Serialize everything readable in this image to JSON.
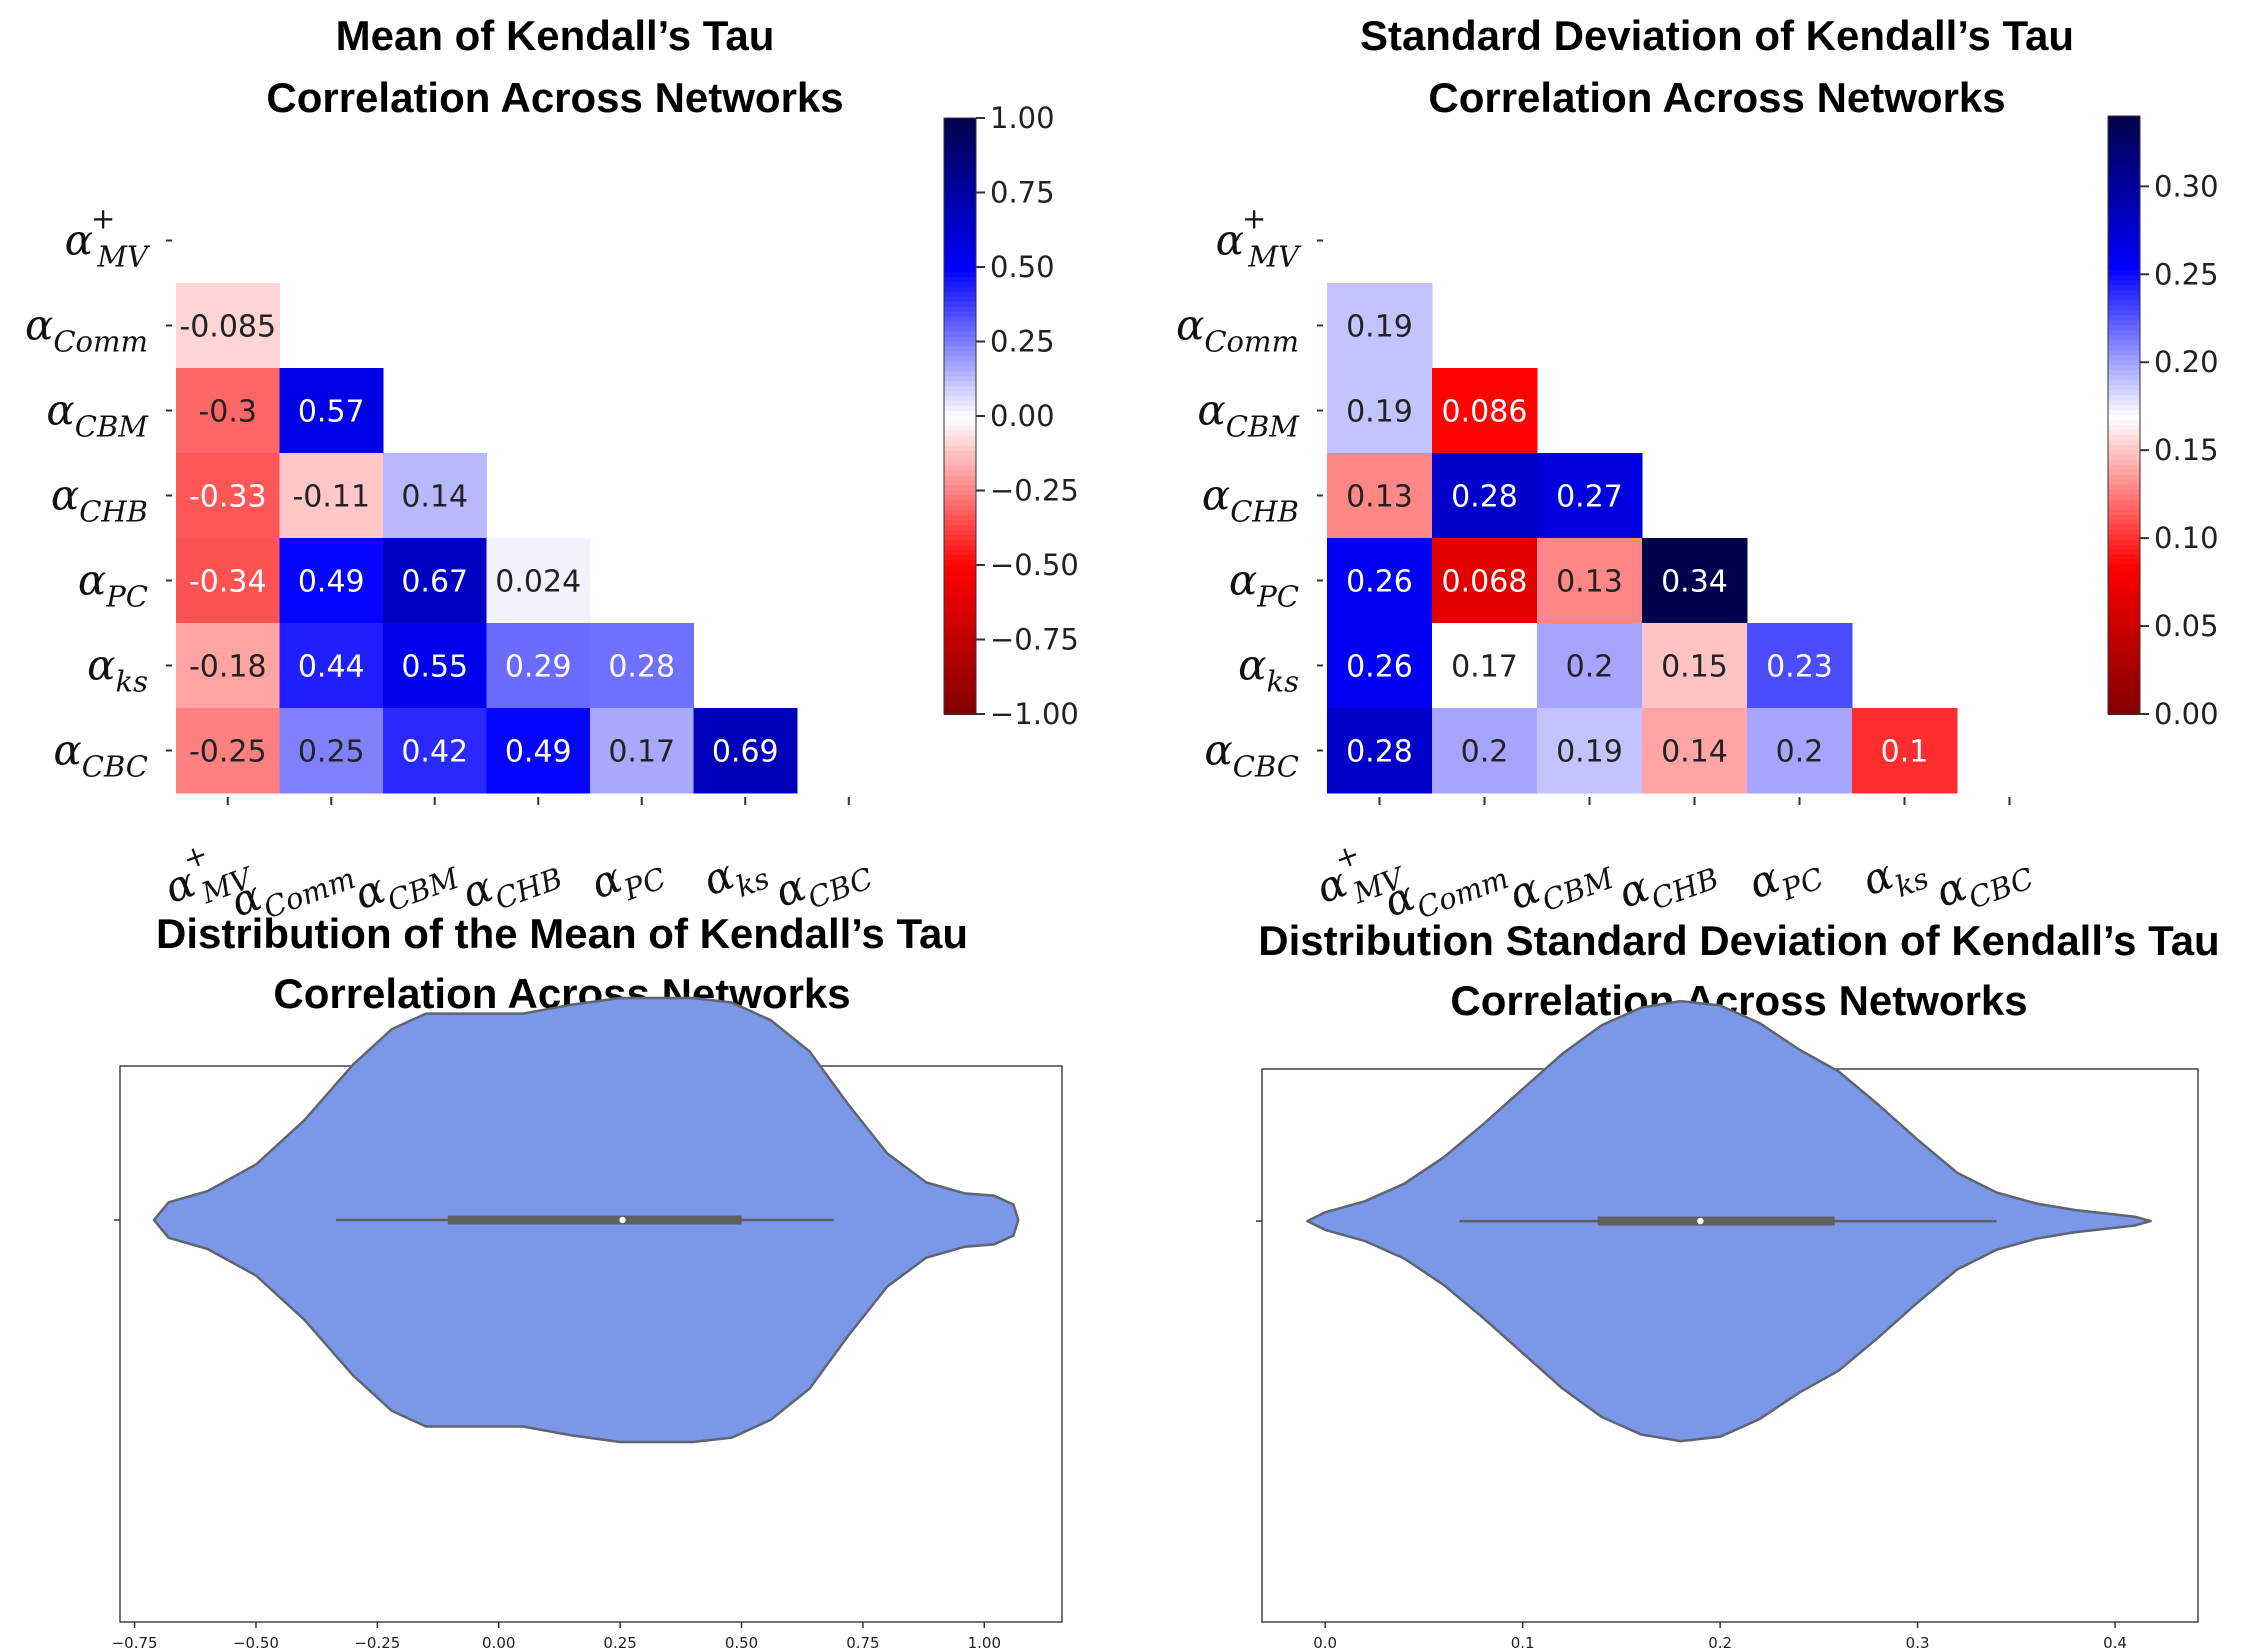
{
  "chart_data": [
    {
      "type": "heatmap",
      "title_lines": [
        "Mean of Kendall’s Tau",
        "Correlation Across Networks"
      ],
      "row_labels": [
        {
          "main": "α",
          "sub": "MV",
          "sup": "+"
        },
        {
          "main": "α",
          "sub": "Comm",
          "sup": ""
        },
        {
          "main": "α",
          "sub": "CBM",
          "sup": ""
        },
        {
          "main": "α",
          "sub": "CHB",
          "sup": ""
        },
        {
          "main": "α",
          "sub": "PC",
          "sup": ""
        },
        {
          "main": "α",
          "sub": "ks",
          "sup": ""
        },
        {
          "main": "α",
          "sub": "CBC",
          "sup": ""
        }
      ],
      "col_labels": [
        {
          "main": "α",
          "sub": "MV",
          "sup": "+"
        },
        {
          "main": "α",
          "sub": "Comm",
          "sup": ""
        },
        {
          "main": "α",
          "sub": "CBM",
          "sup": ""
        },
        {
          "main": "α",
          "sub": "CHB",
          "sup": ""
        },
        {
          "main": "α",
          "sub": "PC",
          "sup": ""
        },
        {
          "main": "α",
          "sub": "ks",
          "sup": ""
        },
        {
          "main": "α",
          "sub": "CBC",
          "sup": ""
        }
      ],
      "values": [
        [
          null,
          null,
          null,
          null,
          null,
          null,
          null
        ],
        [
          -0.085,
          null,
          null,
          null,
          null,
          null,
          null
        ],
        [
          -0.3,
          0.57,
          null,
          null,
          null,
          null,
          null
        ],
        [
          -0.33,
          -0.11,
          0.14,
          null,
          null,
          null,
          null
        ],
        [
          -0.34,
          0.49,
          0.67,
          0.024,
          null,
          null,
          null
        ],
        [
          -0.18,
          0.44,
          0.55,
          0.29,
          0.28,
          null,
          null
        ],
        [
          -0.25,
          0.25,
          0.42,
          0.49,
          0.17,
          0.69,
          null
        ]
      ],
      "labels": [
        [
          null,
          null,
          null,
          null,
          null,
          null,
          null
        ],
        [
          "-0.085",
          null,
          null,
          null,
          null,
          null,
          null
        ],
        [
          "-0.3",
          "0.57",
          null,
          null,
          null,
          null,
          null
        ],
        [
          "-0.33",
          "-0.11",
          "0.14",
          null,
          null,
          null,
          null
        ],
        [
          "-0.34",
          "0.49",
          "0.67",
          "0.024",
          null,
          null,
          null
        ],
        [
          "-0.18",
          "0.44",
          "0.55",
          "0.29",
          "0.28",
          null,
          null
        ],
        [
          "-0.25",
          "0.25",
          "0.42",
          "0.49",
          "0.17",
          "0.69",
          null
        ]
      ],
      "vmin": -1.0,
      "vmax": 1.0,
      "colorbar_ticks": [
        1.0,
        0.75,
        0.5,
        0.25,
        0.0,
        -0.25,
        -0.5,
        -0.75,
        -1.0
      ],
      "colorbar_tick_labels": [
        "1.00",
        "0.75",
        "0.50",
        "0.25",
        "0.00",
        "−0.25",
        "−0.50",
        "−0.75",
        "−1.00"
      ],
      "colormap": "seismic_r"
    },
    {
      "type": "heatmap",
      "title_lines": [
        "Standard Deviation of Kendall’s Tau",
        "Correlation Across Networks"
      ],
      "row_labels": [
        {
          "main": "α",
          "sub": "MV",
          "sup": "+"
        },
        {
          "main": "α",
          "sub": "Comm",
          "sup": ""
        },
        {
          "main": "α",
          "sub": "CBM",
          "sup": ""
        },
        {
          "main": "α",
          "sub": "CHB",
          "sup": ""
        },
        {
          "main": "α",
          "sub": "PC",
          "sup": ""
        },
        {
          "main": "α",
          "sub": "ks",
          "sup": ""
        },
        {
          "main": "α",
          "sub": "CBC",
          "sup": ""
        }
      ],
      "col_labels": [
        {
          "main": "α",
          "sub": "MV",
          "sup": "+"
        },
        {
          "main": "α",
          "sub": "Comm",
          "sup": ""
        },
        {
          "main": "α",
          "sub": "CBM",
          "sup": ""
        },
        {
          "main": "α",
          "sub": "CHB",
          "sup": ""
        },
        {
          "main": "α",
          "sub": "PC",
          "sup": ""
        },
        {
          "main": "α",
          "sub": "ks",
          "sup": ""
        },
        {
          "main": "α",
          "sub": "CBC",
          "sup": ""
        }
      ],
      "values": [
        [
          null,
          null,
          null,
          null,
          null,
          null,
          null
        ],
        [
          0.19,
          null,
          null,
          null,
          null,
          null,
          null
        ],
        [
          0.19,
          0.086,
          null,
          null,
          null,
          null,
          null
        ],
        [
          0.13,
          0.28,
          0.27,
          null,
          null,
          null,
          null
        ],
        [
          0.26,
          0.068,
          0.13,
          0.34,
          null,
          null,
          null
        ],
        [
          0.26,
          0.17,
          0.2,
          0.15,
          0.23,
          null,
          null
        ],
        [
          0.28,
          0.2,
          0.19,
          0.14,
          0.2,
          0.1,
          null
        ]
      ],
      "labels": [
        [
          null,
          null,
          null,
          null,
          null,
          null,
          null
        ],
        [
          "0.19",
          null,
          null,
          null,
          null,
          null,
          null
        ],
        [
          "0.19",
          "0.086",
          null,
          null,
          null,
          null,
          null
        ],
        [
          "0.13",
          "0.28",
          "0.27",
          null,
          null,
          null,
          null
        ],
        [
          "0.26",
          "0.068",
          "0.13",
          "0.34",
          null,
          null,
          null
        ],
        [
          "0.26",
          "0.17",
          "0.2",
          "0.15",
          "0.23",
          null,
          null
        ],
        [
          "0.28",
          "0.2",
          "0.19",
          "0.14",
          "0.2",
          "0.1",
          null
        ]
      ],
      "vmin": 0.0,
      "vmax": 0.34,
      "colorbar_ticks": [
        0.3,
        0.25,
        0.2,
        0.15,
        0.1,
        0.05,
        0.0
      ],
      "colorbar_tick_labels": [
        "0.30",
        "0.25",
        "0.20",
        "0.15",
        "0.10",
        "0.05",
        "0.00"
      ],
      "colormap": "seismic_r"
    },
    {
      "type": "violin",
      "title_lines": [
        "Distribution of the Mean of Kendall’s Tau",
        "Correlation Across Networks"
      ],
      "xlim": [
        -0.78,
        1.16
      ],
      "xticks": [
        -0.75,
        -0.5,
        -0.25,
        0.0,
        0.25,
        0.5,
        0.75,
        1.0
      ],
      "xtick_labels": [
        "−0.75",
        "−0.50",
        "−0.25",
        "0.00",
        "0.25",
        "0.50",
        "0.75",
        "1.00"
      ],
      "density_profile": [
        [
          -0.71,
          0.0
        ],
        [
          -0.68,
          0.08
        ],
        [
          -0.6,
          0.13
        ],
        [
          -0.5,
          0.25
        ],
        [
          -0.4,
          0.45
        ],
        [
          -0.3,
          0.7
        ],
        [
          -0.22,
          0.86
        ],
        [
          -0.15,
          0.93
        ],
        [
          -0.05,
          0.93
        ],
        [
          0.05,
          0.93
        ],
        [
          0.15,
          0.97
        ],
        [
          0.25,
          1.0
        ],
        [
          0.32,
          1.0
        ],
        [
          0.4,
          1.0
        ],
        [
          0.48,
          0.98
        ],
        [
          0.56,
          0.9
        ],
        [
          0.64,
          0.76
        ],
        [
          0.72,
          0.52
        ],
        [
          0.8,
          0.3
        ],
        [
          0.88,
          0.17
        ],
        [
          0.96,
          0.12
        ],
        [
          1.02,
          0.11
        ],
        [
          1.06,
          0.07
        ],
        [
          1.07,
          0.0
        ]
      ],
      "whisker": [
        -0.335,
        0.69
      ],
      "box": [
        -0.105,
        0.5
      ],
      "median": 0.255,
      "color": "#7b98e8"
    },
    {
      "type": "violin",
      "title_lines": [
        "Distribution Standard Deviation of Kendall’s Tau",
        "Correlation Across Networks"
      ],
      "xlim": [
        -0.032,
        0.442
      ],
      "xticks": [
        0.0,
        0.1,
        0.2,
        0.3,
        0.4
      ],
      "xtick_labels": [
        "0.0",
        "0.1",
        "0.2",
        "0.3",
        "0.4"
      ],
      "density_profile": [
        [
          -0.009,
          0.0
        ],
        [
          0.0,
          0.04
        ],
        [
          0.02,
          0.09
        ],
        [
          0.04,
          0.17
        ],
        [
          0.06,
          0.29
        ],
        [
          0.08,
          0.44
        ],
        [
          0.1,
          0.6
        ],
        [
          0.12,
          0.76
        ],
        [
          0.14,
          0.89
        ],
        [
          0.16,
          0.97
        ],
        [
          0.18,
          1.0
        ],
        [
          0.2,
          0.98
        ],
        [
          0.22,
          0.9
        ],
        [
          0.24,
          0.78
        ],
        [
          0.26,
          0.68
        ],
        [
          0.28,
          0.53
        ],
        [
          0.3,
          0.37
        ],
        [
          0.32,
          0.22
        ],
        [
          0.34,
          0.13
        ],
        [
          0.36,
          0.08
        ],
        [
          0.38,
          0.05
        ],
        [
          0.4,
          0.03
        ],
        [
          0.41,
          0.02
        ],
        [
          0.418,
          0.0
        ]
      ],
      "whisker": [
        0.068,
        0.34
      ],
      "box": [
        0.138,
        0.258
      ],
      "median": 0.19,
      "color": "#7b98e8"
    }
  ]
}
